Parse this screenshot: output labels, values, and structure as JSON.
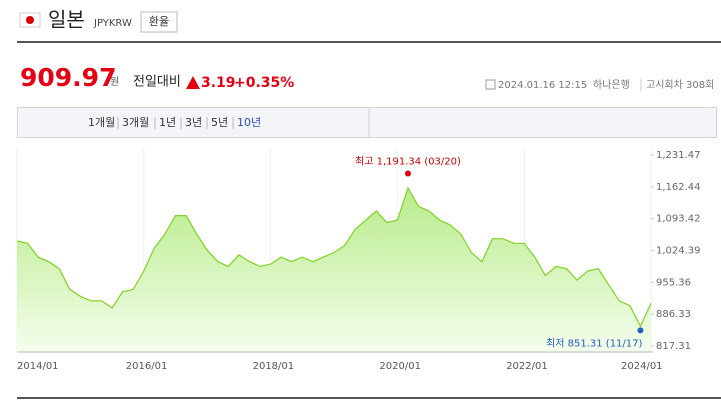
{
  "header": {
    "country": "일본",
    "code": "JPYKRW",
    "button": "환율"
  },
  "quote": {
    "price": "909.97",
    "unit": "원",
    "change_label": "전일대비",
    "change": "3.19",
    "change_pct": "+0.35%",
    "datetime": "2024.01.16 12:15",
    "bank": "하나은행",
    "round": "고시회차 308회"
  },
  "tabs": [
    "1개월",
    "3개월",
    "1년",
    "3년",
    "5년",
    "10년"
  ],
  "chart_data": {
    "type": "area",
    "color": "#7ed321",
    "x": [
      "2014/01",
      "2014/03",
      "2014/05",
      "2014/07",
      "2014/09",
      "2014/11",
      "2015/01",
      "2015/03",
      "2015/05",
      "2015/07",
      "2015/09",
      "2015/11",
      "2016/01",
      "2016/03",
      "2016/05",
      "2016/07",
      "2016/09",
      "2016/11",
      "2017/01",
      "2017/03",
      "2017/05",
      "2017/07",
      "2017/09",
      "2017/11",
      "2018/01",
      "2018/03",
      "2018/05",
      "2018/07",
      "2018/09",
      "2018/11",
      "2019/01",
      "2019/03",
      "2019/05",
      "2019/07",
      "2019/09",
      "2019/11",
      "2020/01",
      "2020/03",
      "2020/05",
      "2020/07",
      "2020/09",
      "2020/11",
      "2021/01",
      "2021/03",
      "2021/05",
      "2021/07",
      "2021/09",
      "2021/11",
      "2022/01",
      "2022/03",
      "2022/05",
      "2022/07",
      "2022/09",
      "2022/11",
      "2023/01",
      "2023/03",
      "2023/05",
      "2023/07",
      "2023/09",
      "2023/11",
      "2024/01"
    ],
    "values": [
      1045,
      1040,
      1010,
      1000,
      985,
      940,
      925,
      915,
      915,
      900,
      935,
      940,
      980,
      1030,
      1060,
      1100,
      1100,
      1060,
      1025,
      1000,
      990,
      1015,
      1000,
      990,
      995,
      1010,
      1000,
      1010,
      1000,
      1010,
      1020,
      1035,
      1070,
      1090,
      1110,
      1085,
      1090,
      1160,
      1120,
      1110,
      1090,
      1080,
      1060,
      1020,
      1000,
      1050,
      1050,
      1040,
      1040,
      1010,
      970,
      990,
      985,
      960,
      980,
      985,
      950,
      915,
      905,
      860,
      909.97
    ],
    "ylim": [
      817.31,
      1231.47
    ],
    "yticks": [
      {
        "value": 1231.47,
        "label": "1,231.47"
      },
      {
        "value": 1162.44,
        "label": "1,162.44"
      },
      {
        "value": 1093.42,
        "label": "1,093.42"
      },
      {
        "value": 1024.39,
        "label": "1,024.39"
      },
      955.36,
      886.33,
      817.31
    ],
    "xticks": [
      "2014/01",
      "2016/01",
      "2018/01",
      "2020/01",
      "2022/01",
      "2024/01"
    ],
    "high": {
      "label": "최고 1,191.34 (03/20)",
      "value": 1191.34,
      "x": "2020/03"
    },
    "low": {
      "label": "최저 851.31 (11/17)",
      "value": 851.31,
      "x": "2023/11"
    }
  }
}
